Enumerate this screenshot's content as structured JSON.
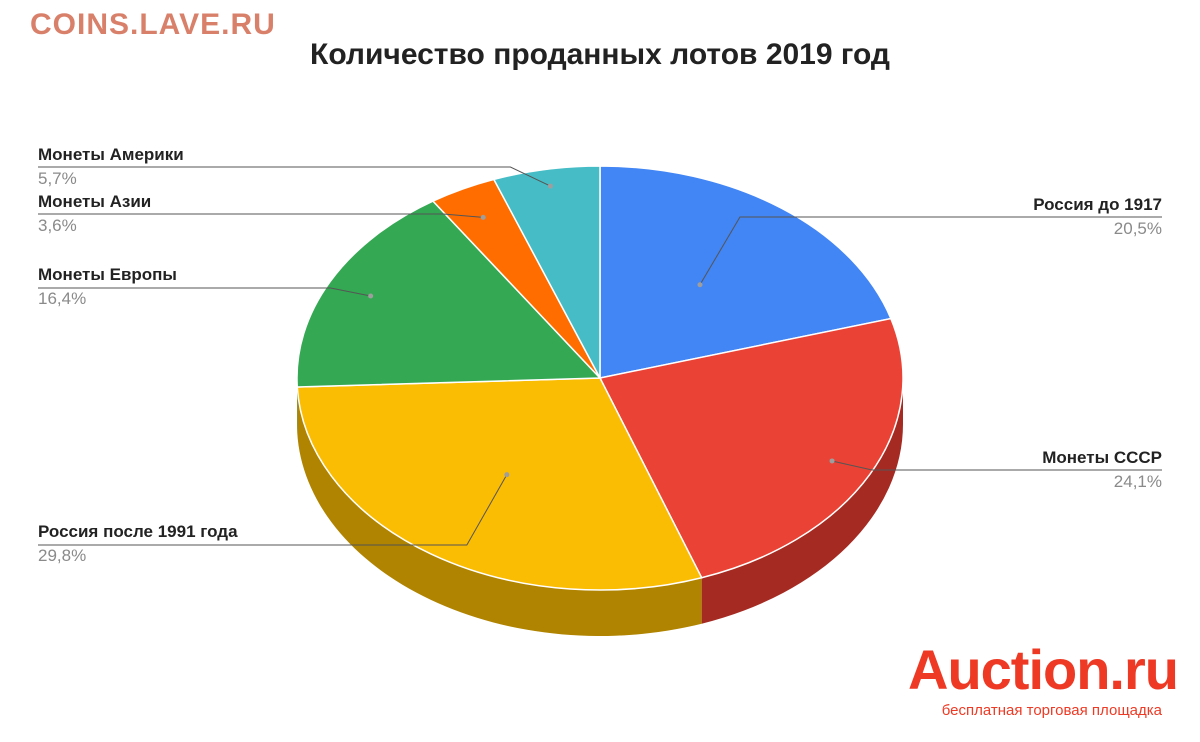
{
  "watermark": "COINS.LAVE.RU",
  "brand": {
    "logo": "Auction.ru",
    "tagline": "бесплатная торговая площадка"
  },
  "chart_data": {
    "type": "pie",
    "title": "Количество проданных лотов 2019 год",
    "style": "3d",
    "start": "12 o'clock, clockwise",
    "slices": [
      {
        "label": "Россия до 1917",
        "value_label": "20,5%",
        "value": 20.5,
        "color": "#4285f4",
        "side_color": "#2f5fb3"
      },
      {
        "label": "Монеты СССР",
        "value_label": "24,1%",
        "value": 24.1,
        "color": "#ea4335",
        "side_color": "#a52a22"
      },
      {
        "label": "Россия после 1991 года",
        "value_label": "29,8%",
        "value": 29.8,
        "color": "#fbbc04",
        "side_color": "#b08400"
      },
      {
        "label": "Монеты Европы",
        "value_label": "16,4%",
        "value": 16.4,
        "color": "#34a853",
        "side_color": "#237a3b"
      },
      {
        "label": "Монеты Азии",
        "value_label": "3,6%",
        "value": 3.6,
        "color": "#ff6d01",
        "side_color": "#b34c00"
      },
      {
        "label": "Монеты Америки",
        "value_label": "5,7%",
        "value": 5.7,
        "color": "#46bdc6",
        "side_color": "#2f878e"
      }
    ],
    "legend": "callout labels"
  }
}
